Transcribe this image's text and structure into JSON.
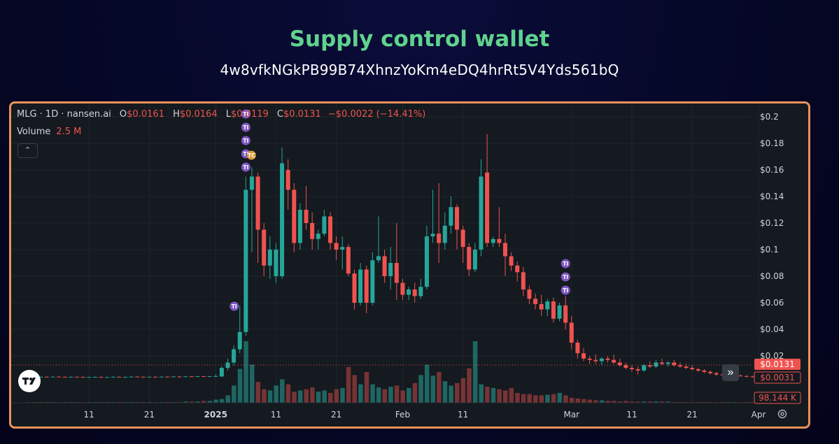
{
  "page": {
    "title": "Supply control wallet",
    "wallet_address": "4w8vfkNGkPB99B74XhnzYoKm4eDQ4hrRt5V4Yds561bQ"
  },
  "legend": {
    "symbol": "MLG · 1D · nansen.ai",
    "o_label": "O",
    "o_value": "$0.0161",
    "h_label": "H",
    "h_value": "$0.0164",
    "l_label": "L",
    "l_value": "$0.0119",
    "c_label": "C",
    "c_value": "$0.0131",
    "change": "−$0.0022 (−14.41%)",
    "volume_label": "Volume",
    "volume_value": "2.5 M"
  },
  "price_tags": {
    "last_price": "$0.0131",
    "prev_price": "$0.0031",
    "volume": "98.144 K"
  },
  "colors": {
    "up": "#26a69a",
    "down": "#ef5350",
    "frame_border": "#e9925a",
    "title": "#5fd38d",
    "marker": "#7e57c2"
  },
  "chart_data": {
    "type": "candlestick",
    "y_ticks": [
      "$0.2",
      "$0.18",
      "$0.16",
      "$0.14",
      "$0.12",
      "$0.1",
      "$0.08",
      "$0.06",
      "$0.04",
      "$0.02"
    ],
    "y_tick_values": [
      0.2,
      0.18,
      0.16,
      0.14,
      0.12,
      0.1,
      0.08,
      0.06,
      0.04,
      0.02
    ],
    "ylim": [
      0.0,
      0.205
    ],
    "x_ticks": [
      "11",
      "21",
      "2025",
      "11",
      "21",
      "Feb",
      "11",
      "Mar",
      "11",
      "21",
      "Apr"
    ],
    "x_tick_days": [
      -21,
      -11,
      0,
      10,
      20,
      31,
      41,
      59,
      69,
      79,
      90
    ],
    "xlim": [
      -31,
      99
    ],
    "candles": [
      {
        "d": -31,
        "o": 0.0043,
        "h": 0.0045,
        "l": 0.004,
        "c": 0.0042
      },
      {
        "d": -30,
        "o": 0.0042,
        "h": 0.0045,
        "l": 0.004,
        "c": 0.0041
      },
      {
        "d": -29,
        "o": 0.0041,
        "h": 0.0045,
        "l": 0.004,
        "c": 0.0043
      },
      {
        "d": -28,
        "o": 0.0043,
        "h": 0.0045,
        "l": 0.004,
        "c": 0.0042
      },
      {
        "d": -27,
        "o": 0.0042,
        "h": 0.0045,
        "l": 0.004,
        "c": 0.0044
      },
      {
        "d": -26,
        "o": 0.0044,
        "h": 0.0046,
        "l": 0.0041,
        "c": 0.0042
      },
      {
        "d": -25,
        "o": 0.0042,
        "h": 0.0045,
        "l": 0.004,
        "c": 0.0041
      },
      {
        "d": -24,
        "o": 0.0041,
        "h": 0.0044,
        "l": 0.0039,
        "c": 0.0043
      },
      {
        "d": -23,
        "o": 0.0043,
        "h": 0.0045,
        "l": 0.004,
        "c": 0.0042
      },
      {
        "d": -22,
        "o": 0.0042,
        "h": 0.0044,
        "l": 0.0039,
        "c": 0.004
      },
      {
        "d": -21,
        "o": 0.004,
        "h": 0.0043,
        "l": 0.0038,
        "c": 0.0041
      },
      {
        "d": -20,
        "o": 0.0041,
        "h": 0.0044,
        "l": 0.0039,
        "c": 0.0042
      },
      {
        "d": -19,
        "o": 0.0042,
        "h": 0.0044,
        "l": 0.0039,
        "c": 0.004
      },
      {
        "d": -18,
        "o": 0.004,
        "h": 0.0043,
        "l": 0.0038,
        "c": 0.0041
      },
      {
        "d": -17,
        "o": 0.0041,
        "h": 0.0044,
        "l": 0.0039,
        "c": 0.0043
      },
      {
        "d": -16,
        "o": 0.0043,
        "h": 0.0045,
        "l": 0.004,
        "c": 0.0041
      },
      {
        "d": -15,
        "o": 0.0041,
        "h": 0.0044,
        "l": 0.0039,
        "c": 0.0042
      },
      {
        "d": -14,
        "o": 0.0042,
        "h": 0.0045,
        "l": 0.004,
        "c": 0.0044
      },
      {
        "d": -13,
        "o": 0.0044,
        "h": 0.0046,
        "l": 0.0041,
        "c": 0.0043
      },
      {
        "d": -12,
        "o": 0.0043,
        "h": 0.0045,
        "l": 0.004,
        "c": 0.0041
      },
      {
        "d": -11,
        "o": 0.0041,
        "h": 0.0044,
        "l": 0.0039,
        "c": 0.0043
      },
      {
        "d": -10,
        "o": 0.0043,
        "h": 0.0045,
        "l": 0.004,
        "c": 0.0042
      },
      {
        "d": -9,
        "o": 0.0042,
        "h": 0.0045,
        "l": 0.004,
        "c": 0.0044
      },
      {
        "d": -8,
        "o": 0.0044,
        "h": 0.0047,
        "l": 0.0042,
        "c": 0.0043
      },
      {
        "d": -7,
        "o": 0.0043,
        "h": 0.0046,
        "l": 0.0041,
        "c": 0.0045
      },
      {
        "d": -6,
        "o": 0.0045,
        "h": 0.0048,
        "l": 0.0043,
        "c": 0.0044
      },
      {
        "d": -5,
        "o": 0.0044,
        "h": 0.0047,
        "l": 0.0042,
        "c": 0.0046
      },
      {
        "d": -4,
        "o": 0.0046,
        "h": 0.0049,
        "l": 0.0044,
        "c": 0.0045
      },
      {
        "d": -3,
        "o": 0.0045,
        "h": 0.0048,
        "l": 0.0043,
        "c": 0.0047
      },
      {
        "d": -2,
        "o": 0.0047,
        "h": 0.0049,
        "l": 0.0044,
        "c": 0.0046
      },
      {
        "d": -1,
        "o": 0.0046,
        "h": 0.0049,
        "l": 0.0044,
        "c": 0.0047
      },
      {
        "d": 0,
        "o": 0.0047,
        "h": 0.006,
        "l": 0.0045,
        "c": 0.0048
      },
      {
        "d": 1,
        "o": 0.0045,
        "h": 0.012,
        "l": 0.0042,
        "c": 0.011
      },
      {
        "d": 2,
        "o": 0.011,
        "h": 0.018,
        "l": 0.009,
        "c": 0.015
      },
      {
        "d": 3,
        "o": 0.015,
        "h": 0.028,
        "l": 0.013,
        "c": 0.025
      },
      {
        "d": 4,
        "o": 0.025,
        "h": 0.058,
        "l": 0.022,
        "c": 0.038
      },
      {
        "d": 5,
        "o": 0.038,
        "h": 0.155,
        "l": 0.035,
        "c": 0.145
      },
      {
        "d": 6,
        "o": 0.145,
        "h": 0.162,
        "l": 0.098,
        "c": 0.155
      },
      {
        "d": 7,
        "o": 0.155,
        "h": 0.158,
        "l": 0.09,
        "c": 0.115
      },
      {
        "d": 8,
        "o": 0.115,
        "h": 0.12,
        "l": 0.08,
        "c": 0.088
      },
      {
        "d": 9,
        "o": 0.088,
        "h": 0.11,
        "l": 0.078,
        "c": 0.1
      },
      {
        "d": 10,
        "o": 0.08,
        "h": 0.105,
        "l": 0.075,
        "c": 0.1
      },
      {
        "d": 11,
        "o": 0.08,
        "h": 0.177,
        "l": 0.078,
        "c": 0.165
      },
      {
        "d": 12,
        "o": 0.16,
        "h": 0.168,
        "l": 0.13,
        "c": 0.145
      },
      {
        "d": 13,
        "o": 0.145,
        "h": 0.15,
        "l": 0.098,
        "c": 0.105
      },
      {
        "d": 14,
        "o": 0.105,
        "h": 0.135,
        "l": 0.1,
        "c": 0.13
      },
      {
        "d": 15,
        "o": 0.13,
        "h": 0.148,
        "l": 0.115,
        "c": 0.12
      },
      {
        "d": 16,
        "o": 0.12,
        "h": 0.128,
        "l": 0.1,
        "c": 0.108
      },
      {
        "d": 17,
        "o": 0.108,
        "h": 0.115,
        "l": 0.1,
        "c": 0.112
      },
      {
        "d": 18,
        "o": 0.112,
        "h": 0.13,
        "l": 0.11,
        "c": 0.125
      },
      {
        "d": 19,
        "o": 0.125,
        "h": 0.128,
        "l": 0.1,
        "c": 0.105
      },
      {
        "d": 20,
        "o": 0.105,
        "h": 0.11,
        "l": 0.092,
        "c": 0.1
      },
      {
        "d": 21,
        "o": 0.1,
        "h": 0.11,
        "l": 0.085,
        "c": 0.102
      },
      {
        "d": 22,
        "o": 0.102,
        "h": 0.104,
        "l": 0.08,
        "c": 0.082
      },
      {
        "d": 23,
        "o": 0.082,
        "h": 0.085,
        "l": 0.055,
        "c": 0.06
      },
      {
        "d": 24,
        "o": 0.06,
        "h": 0.09,
        "l": 0.058,
        "c": 0.085
      },
      {
        "d": 25,
        "o": 0.085,
        "h": 0.088,
        "l": 0.052,
        "c": 0.06
      },
      {
        "d": 26,
        "o": 0.06,
        "h": 0.098,
        "l": 0.058,
        "c": 0.092
      },
      {
        "d": 27,
        "o": 0.092,
        "h": 0.125,
        "l": 0.09,
        "c": 0.095
      },
      {
        "d": 28,
        "o": 0.095,
        "h": 0.1,
        "l": 0.075,
        "c": 0.08
      },
      {
        "d": 29,
        "o": 0.08,
        "h": 0.102,
        "l": 0.07,
        "c": 0.09
      },
      {
        "d": 30,
        "o": 0.09,
        "h": 0.12,
        "l": 0.062,
        "c": 0.075
      },
      {
        "d": 31,
        "o": 0.075,
        "h": 0.078,
        "l": 0.062,
        "c": 0.066
      },
      {
        "d": 32,
        "o": 0.066,
        "h": 0.072,
        "l": 0.062,
        "c": 0.07
      },
      {
        "d": 33,
        "o": 0.07,
        "h": 0.075,
        "l": 0.06,
        "c": 0.065
      },
      {
        "d": 34,
        "o": 0.065,
        "h": 0.078,
        "l": 0.063,
        "c": 0.072
      },
      {
        "d": 35,
        "o": 0.072,
        "h": 0.118,
        "l": 0.07,
        "c": 0.11
      },
      {
        "d": 36,
        "o": 0.11,
        "h": 0.145,
        "l": 0.105,
        "c": 0.112
      },
      {
        "d": 37,
        "o": 0.112,
        "h": 0.15,
        "l": 0.09,
        "c": 0.105
      },
      {
        "d": 38,
        "o": 0.105,
        "h": 0.128,
        "l": 0.1,
        "c": 0.118
      },
      {
        "d": 39,
        "o": 0.118,
        "h": 0.14,
        "l": 0.112,
        "c": 0.132
      },
      {
        "d": 40,
        "o": 0.132,
        "h": 0.134,
        "l": 0.1,
        "c": 0.115
      },
      {
        "d": 41,
        "o": 0.115,
        "h": 0.118,
        "l": 0.09,
        "c": 0.102
      },
      {
        "d": 42,
        "o": 0.102,
        "h": 0.105,
        "l": 0.08,
        "c": 0.085
      },
      {
        "d": 43,
        "o": 0.085,
        "h": 0.105,
        "l": 0.083,
        "c": 0.1
      },
      {
        "d": 44,
        "o": 0.1,
        "h": 0.168,
        "l": 0.095,
        "c": 0.155
      },
      {
        "d": 45,
        "o": 0.158,
        "h": 0.187,
        "l": 0.102,
        "c": 0.105
      },
      {
        "d": 46,
        "o": 0.105,
        "h": 0.11,
        "l": 0.102,
        "c": 0.108
      },
      {
        "d": 47,
        "o": 0.108,
        "h": 0.132,
        "l": 0.102,
        "c": 0.105
      },
      {
        "d": 48,
        "o": 0.105,
        "h": 0.112,
        "l": 0.08,
        "c": 0.095
      },
      {
        "d": 49,
        "o": 0.095,
        "h": 0.098,
        "l": 0.084,
        "c": 0.088
      },
      {
        "d": 50,
        "o": 0.088,
        "h": 0.091,
        "l": 0.076,
        "c": 0.083
      },
      {
        "d": 51,
        "o": 0.083,
        "h": 0.087,
        "l": 0.065,
        "c": 0.07
      },
      {
        "d": 52,
        "o": 0.07,
        "h": 0.073,
        "l": 0.059,
        "c": 0.063
      },
      {
        "d": 53,
        "o": 0.063,
        "h": 0.067,
        "l": 0.055,
        "c": 0.059
      },
      {
        "d": 54,
        "o": 0.059,
        "h": 0.066,
        "l": 0.05,
        "c": 0.055
      },
      {
        "d": 55,
        "o": 0.055,
        "h": 0.063,
        "l": 0.05,
        "c": 0.061
      },
      {
        "d": 56,
        "o": 0.061,
        "h": 0.064,
        "l": 0.045,
        "c": 0.048
      },
      {
        "d": 57,
        "o": 0.048,
        "h": 0.06,
        "l": 0.046,
        "c": 0.058
      },
      {
        "d": 58,
        "o": 0.058,
        "h": 0.065,
        "l": 0.04,
        "c": 0.045
      },
      {
        "d": 59,
        "o": 0.045,
        "h": 0.05,
        "l": 0.025,
        "c": 0.03
      }
    ],
    "candles_tail": [
      {
        "d": 60,
        "o": 0.03,
        "h": 0.032,
        "l": 0.018,
        "c": 0.022
      },
      {
        "d": 61,
        "o": 0.022,
        "h": 0.026,
        "l": 0.016,
        "c": 0.018
      },
      {
        "d": 62,
        "o": 0.018,
        "h": 0.02,
        "l": 0.014,
        "c": 0.017
      },
      {
        "d": 63,
        "o": 0.017,
        "h": 0.021,
        "l": 0.014,
        "c": 0.016
      },
      {
        "d": 64,
        "o": 0.016,
        "h": 0.019,
        "l": 0.013,
        "c": 0.018
      },
      {
        "d": 65,
        "o": 0.018,
        "h": 0.02,
        "l": 0.015,
        "c": 0.017
      },
      {
        "d": 66,
        "o": 0.017,
        "h": 0.021,
        "l": 0.014,
        "c": 0.015
      },
      {
        "d": 67,
        "o": 0.015,
        "h": 0.018,
        "l": 0.012,
        "c": 0.013
      },
      {
        "d": 68,
        "o": 0.013,
        "h": 0.015,
        "l": 0.01,
        "c": 0.011
      },
      {
        "d": 69,
        "o": 0.011,
        "h": 0.013,
        "l": 0.008,
        "c": 0.01
      },
      {
        "d": 70,
        "o": 0.01,
        "h": 0.012,
        "l": 0.006,
        "c": 0.009
      },
      {
        "d": 71,
        "o": 0.009,
        "h": 0.014,
        "l": 0.008,
        "c": 0.013
      },
      {
        "d": 72,
        "o": 0.013,
        "h": 0.016,
        "l": 0.011,
        "c": 0.012
      },
      {
        "d": 73,
        "o": 0.012,
        "h": 0.017,
        "l": 0.011,
        "c": 0.015
      },
      {
        "d": 74,
        "o": 0.015,
        "h": 0.018,
        "l": 0.013,
        "c": 0.014
      },
      {
        "d": 75,
        "o": 0.014,
        "h": 0.016,
        "l": 0.012,
        "c": 0.015
      },
      {
        "d": 76,
        "o": 0.015,
        "h": 0.017,
        "l": 0.012,
        "c": 0.013
      },
      {
        "d": 77,
        "o": 0.013,
        "h": 0.015,
        "l": 0.011,
        "c": 0.012
      },
      {
        "d": 78,
        "o": 0.012,
        "h": 0.014,
        "l": 0.01,
        "c": 0.011
      },
      {
        "d": 79,
        "o": 0.011,
        "h": 0.013,
        "l": 0.009,
        "c": 0.01
      },
      {
        "d": 80,
        "o": 0.01,
        "h": 0.011,
        "l": 0.008,
        "c": 0.009
      },
      {
        "d": 81,
        "o": 0.009,
        "h": 0.01,
        "l": 0.007,
        "c": 0.008
      },
      {
        "d": 82,
        "o": 0.008,
        "h": 0.009,
        "l": 0.006,
        "c": 0.007
      },
      {
        "d": 83,
        "o": 0.007,
        "h": 0.008,
        "l": 0.005,
        "c": 0.006
      },
      {
        "d": 84,
        "o": 0.006,
        "h": 0.007,
        "l": 0.0045,
        "c": 0.0055
      },
      {
        "d": 85,
        "o": 0.0055,
        "h": 0.0065,
        "l": 0.0045,
        "c": 0.005
      },
      {
        "d": 86,
        "o": 0.005,
        "h": 0.006,
        "l": 0.0042,
        "c": 0.0052
      },
      {
        "d": 87,
        "o": 0.0052,
        "h": 0.006,
        "l": 0.0044,
        "c": 0.0048
      },
      {
        "d": 88,
        "o": 0.0048,
        "h": 0.0055,
        "l": 0.004,
        "c": 0.0045
      },
      {
        "d": 89,
        "o": 0.0045,
        "h": 0.005,
        "l": 0.0038,
        "c": 0.0042
      },
      {
        "d": 90,
        "o": 0.0042,
        "h": 0.0048,
        "l": 0.0036,
        "c": 0.004
      },
      {
        "d": 91,
        "o": 0.004,
        "h": 0.0046,
        "l": 0.0035,
        "c": 0.0038
      },
      {
        "d": 92,
        "o": 0.0038,
        "h": 0.0044,
        "l": 0.0033,
        "c": 0.0036
      },
      {
        "d": 93,
        "o": 0.0036,
        "h": 0.0042,
        "l": 0.0032,
        "c": 0.0035
      },
      {
        "d": 94,
        "o": 0.0035,
        "h": 0.004,
        "l": 0.003,
        "c": 0.0033
      },
      {
        "d": 95,
        "o": 0.0033,
        "h": 0.0038,
        "l": 0.003,
        "c": 0.0032
      },
      {
        "d": 96,
        "o": 0.0032,
        "h": 0.0036,
        "l": 0.0029,
        "c": 0.0031
      }
    ],
    "volume_bars": [
      0.01,
      0.01,
      0.01,
      0.01,
      0.01,
      0.01,
      0.01,
      0.01,
      0.01,
      0.01,
      0.01,
      0.01,
      0.01,
      0.01,
      0.01,
      0.01,
      0.01,
      0.01,
      0.01,
      0.01,
      0.01,
      0.01,
      0.01,
      0.01,
      0.01,
      0.01,
      0.02,
      0.02,
      0.02,
      0.03,
      0.03,
      0.05,
      0.06,
      0.12,
      0.28,
      0.55,
      1.0,
      0.62,
      0.34,
      0.22,
      0.2,
      0.28,
      0.38,
      0.3,
      0.18,
      0.2,
      0.22,
      0.25,
      0.18,
      0.2,
      0.16,
      0.22,
      0.24,
      0.58,
      0.45,
      0.3,
      0.5,
      0.3,
      0.25,
      0.22,
      0.26,
      0.28,
      0.2,
      0.24,
      0.32,
      0.45,
      0.62,
      0.44,
      0.5,
      0.35,
      0.28,
      0.32,
      0.4,
      0.56,
      1.0,
      0.3,
      0.26,
      0.24,
      0.22,
      0.2,
      0.24,
      0.16,
      0.14,
      0.14,
      0.12,
      0.12,
      0.13,
      0.14,
      0.16,
      0.12,
      0.08,
      0.07,
      0.06,
      0.05,
      0.04,
      0.04,
      0.03,
      0.03,
      0.02,
      0.03,
      0.02,
      0.02,
      0.02,
      0.02,
      0.02,
      0.02,
      0.02,
      0.01,
      0.01,
      0.01,
      0.01,
      0.01,
      0.01,
      0.01,
      0.01,
      0.01,
      0.01,
      0.01,
      0.01,
      0.01,
      0.01,
      0.01,
      0.01,
      0.01,
      0.01,
      0.01,
      0.01,
      0.01
    ],
    "markers": [
      {
        "d": 5,
        "label": "TI",
        "stack": [
          0,
          1,
          2,
          3,
          4
        ]
      },
      {
        "d": 5.5,
        "label": "TC",
        "stack": [
          3
        ]
      },
      {
        "d": 4,
        "label": "TI",
        "price": 0.06
      },
      {
        "d": 58,
        "label": "TI",
        "stack_price": [
          0.1,
          0.09,
          0.08
        ]
      }
    ]
  }
}
